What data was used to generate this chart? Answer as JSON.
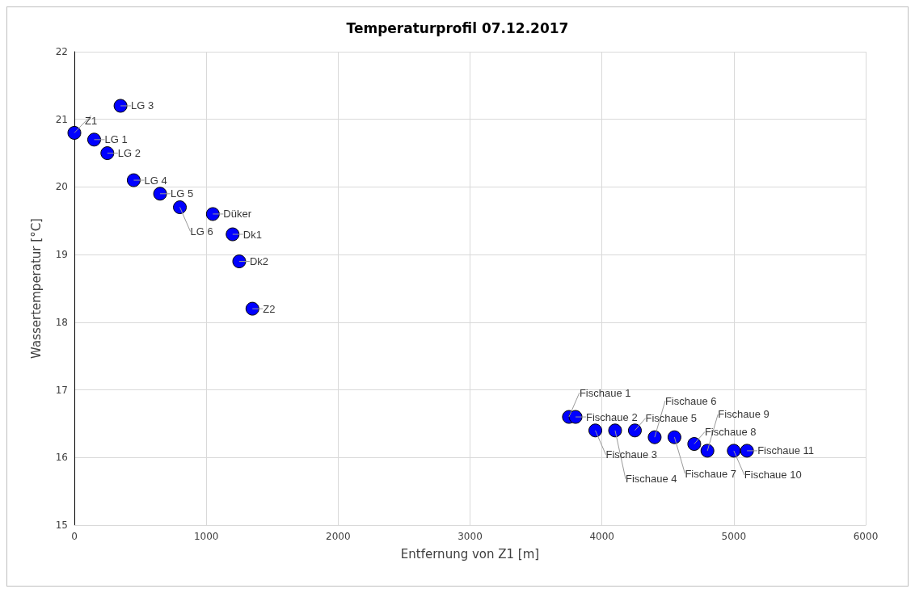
{
  "chart_data": {
    "type": "scatter",
    "title": "Temperaturprofil 07.12.2017",
    "xlabel": "Entfernung von Z1 [m]",
    "ylabel": "Wassertemperatur [°C]",
    "x": [
      0,
      150,
      250,
      350,
      450,
      650,
      800,
      1050,
      1200,
      1250,
      1350,
      3750,
      3800,
      3950,
      4100,
      4250,
      4400,
      4550,
      4700,
      4800,
      5000,
      5100
    ],
    "series": [
      {
        "color": "#0000ff",
        "values": [
          20.8,
          20.7,
          20.5,
          21.2,
          20.1,
          19.9,
          19.7,
          19.6,
          19.3,
          18.9,
          18.2,
          16.6,
          16.6,
          16.4,
          16.4,
          16.4,
          16.3,
          16.3,
          16.2,
          16.1,
          16.1,
          16.1
        ]
      }
    ],
    "annotations": [
      {
        "text": "Z1",
        "x": 0,
        "y": 20.8
      },
      {
        "text": "LG 1",
        "x": 150,
        "y": 20.7
      },
      {
        "text": "LG 2",
        "x": 250,
        "y": 20.5
      },
      {
        "text": "LG 3",
        "x": 350,
        "y": 21.2
      },
      {
        "text": "LG 4",
        "x": 450,
        "y": 20.1
      },
      {
        "text": "LG 5",
        "x": 650,
        "y": 19.9
      },
      {
        "text": "LG 6",
        "x": 800,
        "y": 19.7
      },
      {
        "text": "Düker",
        "x": 1050,
        "y": 19.6
      },
      {
        "text": "Dk1",
        "x": 1200,
        "y": 19.3
      },
      {
        "text": "Dk2",
        "x": 1250,
        "y": 18.9
      },
      {
        "text": "Z2",
        "x": 1350,
        "y": 18.2
      },
      {
        "text": "Fischaue 1",
        "x": 3750,
        "y": 16.6
      },
      {
        "text": "Fischaue 2",
        "x": 3800,
        "y": 16.6
      },
      {
        "text": "Fischaue 3",
        "x": 3950,
        "y": 16.4
      },
      {
        "text": "Fischaue 4",
        "x": 4100,
        "y": 16.4
      },
      {
        "text": "Fischaue 5",
        "x": 4250,
        "y": 16.4
      },
      {
        "text": "Fischaue 6",
        "x": 4400,
        "y": 16.3
      },
      {
        "text": "Fischaue 7",
        "x": 4550,
        "y": 16.3
      },
      {
        "text": "Fischaue 8",
        "x": 4700,
        "y": 16.2
      },
      {
        "text": "Fischaue 9",
        "x": 4800,
        "y": 16.1
      },
      {
        "text": "Fischaue 10",
        "x": 5000,
        "y": 16.1
      },
      {
        "text": "Fischaue 11",
        "x": 5100,
        "y": 16.1
      }
    ],
    "xlim": [
      0,
      6000
    ],
    "xticks": [
      0,
      1000,
      2000,
      3000,
      4000,
      5000,
      6000
    ],
    "ylim": [
      15,
      22
    ],
    "yticks": [
      15,
      16,
      17,
      18,
      19,
      20,
      21,
      22
    ],
    "grid": true,
    "marker": "circle"
  }
}
